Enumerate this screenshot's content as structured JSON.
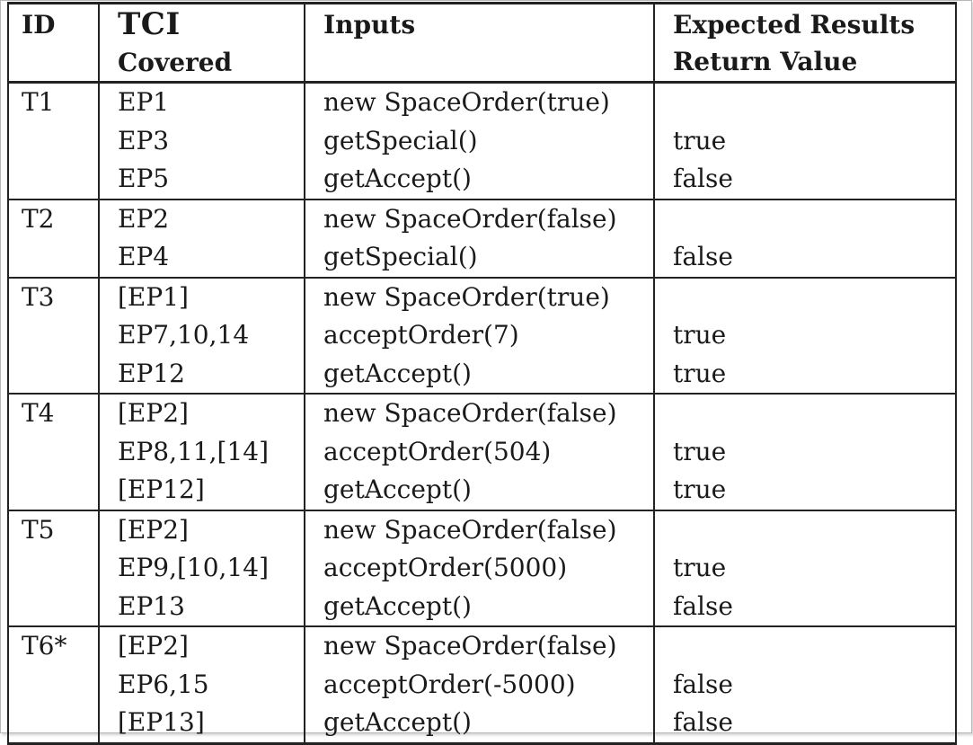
{
  "header": {
    "id": "ID",
    "tci_line1": "TCI",
    "tci_line2": "Covered",
    "inputs": "Inputs",
    "expected_line1": "Expected Results",
    "expected_line2": "Return Value"
  },
  "rows": [
    {
      "id": "T1",
      "lines": [
        {
          "tci": "EP1",
          "input": "new SpaceOrder(true)",
          "ret": ""
        },
        {
          "tci": "EP3",
          "input": "getSpecial()",
          "ret": "true"
        },
        {
          "tci": "EP5",
          "input": "getAccept()",
          "ret": "false"
        }
      ]
    },
    {
      "id": "T2",
      "lines": [
        {
          "tci": "EP2",
          "input": "new SpaceOrder(false)",
          "ret": ""
        },
        {
          "tci": "EP4",
          "input": "getSpecial()",
          "ret": "false"
        }
      ]
    },
    {
      "id": "T3",
      "lines": [
        {
          "tci": "[EP1]",
          "input": "new SpaceOrder(true)",
          "ret": ""
        },
        {
          "tci": "EP7,10,14",
          "input": "acceptOrder(7)",
          "ret": "true"
        },
        {
          "tci": "EP12",
          "input": "getAccept()",
          "ret": "true"
        }
      ]
    },
    {
      "id": "T4",
      "lines": [
        {
          "tci": "[EP2]",
          "input": "new SpaceOrder(false)",
          "ret": ""
        },
        {
          "tci": "EP8,11,[14]",
          "input": "acceptOrder(504)",
          "ret": "true"
        },
        {
          "tci": "[EP12]",
          "input": "getAccept()",
          "ret": "true"
        }
      ]
    },
    {
      "id": "T5",
      "lines": [
        {
          "tci": "[EP2]",
          "input": "new SpaceOrder(false)",
          "ret": ""
        },
        {
          "tci": "EP9,[10,14]",
          "input": "acceptOrder(5000)",
          "ret": "true"
        },
        {
          "tci": "EP13",
          "input": "getAccept()",
          "ret": "false"
        }
      ]
    },
    {
      "id": "T6*",
      "lines": [
        {
          "tci": "[EP2]",
          "input": "new SpaceOrder(false)",
          "ret": ""
        },
        {
          "tci": "EP6,15",
          "input": "acceptOrder(-5000)",
          "ret": "false"
        },
        {
          "tci": "[EP13]",
          "input": "getAccept()",
          "ret": "false"
        }
      ]
    }
  ]
}
